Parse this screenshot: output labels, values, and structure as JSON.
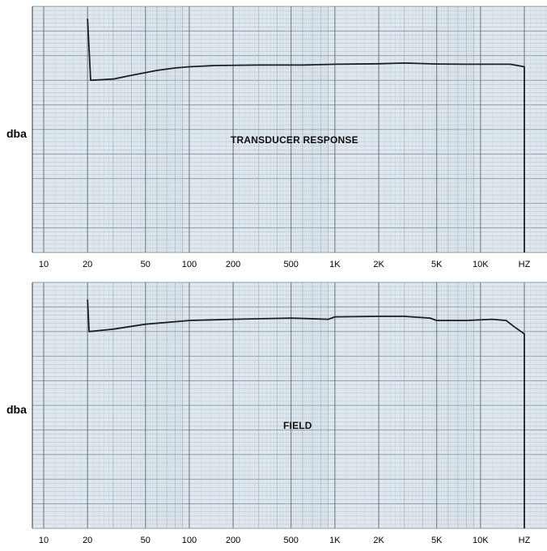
{
  "chart_data": [
    {
      "type": "line",
      "title": "TRANSDUCER RESPONSE",
      "ylabel": "dba",
      "xlabel": "",
      "x_scale": "log",
      "xlim": [
        10,
        20000
      ],
      "ylim": [
        0,
        10
      ],
      "grid": true,
      "x_ticks": [
        {
          "value": 10,
          "label": "10"
        },
        {
          "value": 20,
          "label": "20"
        },
        {
          "value": 50,
          "label": "50"
        },
        {
          "value": 100,
          "label": "100"
        },
        {
          "value": 200,
          "label": "200"
        },
        {
          "value": 500,
          "label": "500"
        },
        {
          "value": 1000,
          "label": "1K"
        },
        {
          "value": 2000,
          "label": "2K"
        },
        {
          "value": 5000,
          "label": "5K"
        },
        {
          "value": 10000,
          "label": "10K"
        },
        {
          "value": 20000,
          "label": "HZ"
        }
      ],
      "series": [
        {
          "x": [
            20,
            21,
            30,
            40,
            60,
            80,
            100,
            150,
            300,
            600,
            1000,
            2000,
            3000,
            5000,
            8000,
            12000,
            16000,
            18000,
            20000,
            20000
          ],
          "y": [
            9.5,
            7.0,
            7.05,
            7.2,
            7.4,
            7.5,
            7.55,
            7.6,
            7.62,
            7.62,
            7.65,
            7.67,
            7.7,
            7.66,
            7.65,
            7.65,
            7.65,
            7.6,
            7.55,
            0
          ]
        }
      ]
    },
    {
      "type": "line",
      "title": "FIELD",
      "ylabel": "dba",
      "xlabel": "",
      "x_scale": "log",
      "xlim": [
        10,
        20000
      ],
      "ylim": [
        0,
        10
      ],
      "grid": true,
      "x_ticks": [
        {
          "value": 10,
          "label": "10"
        },
        {
          "value": 20,
          "label": "20"
        },
        {
          "value": 50,
          "label": "50"
        },
        {
          "value": 100,
          "label": "100"
        },
        {
          "value": 200,
          "label": "200"
        },
        {
          "value": 500,
          "label": "500"
        },
        {
          "value": 1000,
          "label": "1K"
        },
        {
          "value": 2000,
          "label": "2K"
        },
        {
          "value": 5000,
          "label": "5K"
        },
        {
          "value": 10000,
          "label": "10K"
        },
        {
          "value": 20000,
          "label": "HZ"
        }
      ],
      "series": [
        {
          "x": [
            20,
            20.5,
            30,
            50,
            100,
            200,
            500,
            900,
            1000,
            2000,
            3000,
            4500,
            5000,
            8000,
            12000,
            15000,
            17000,
            19000,
            20000,
            20000
          ],
          "y": [
            9.3,
            8.0,
            8.1,
            8.3,
            8.45,
            8.5,
            8.55,
            8.5,
            8.6,
            8.62,
            8.62,
            8.55,
            8.45,
            8.45,
            8.5,
            8.45,
            8.2,
            8.0,
            7.9,
            0
          ]
        }
      ]
    }
  ]
}
